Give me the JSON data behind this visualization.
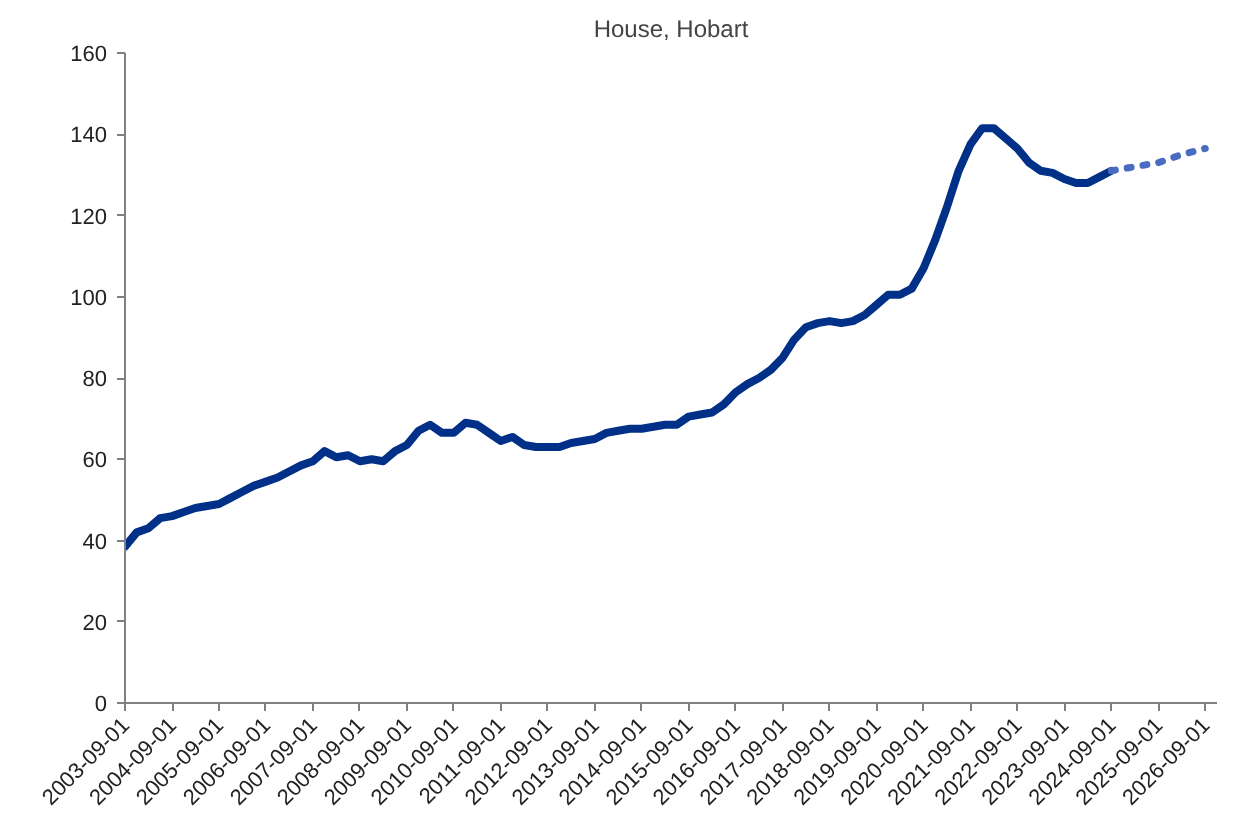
{
  "chart_data": {
    "type": "line",
    "title": "House, Hobart",
    "ylim": [
      0,
      160
    ],
    "yticks": [
      0,
      20,
      40,
      60,
      80,
      100,
      120,
      140,
      160
    ],
    "xlim": [
      "2003-09-01",
      "2026-12-01"
    ],
    "xticks": [
      "2003-09-01",
      "2004-09-01",
      "2005-09-01",
      "2006-09-01",
      "2007-09-01",
      "2008-09-01",
      "2009-09-01",
      "2010-09-01",
      "2011-09-01",
      "2012-09-01",
      "2013-09-01",
      "2014-09-01",
      "2015-09-01",
      "2016-09-01",
      "2017-09-01",
      "2018-09-01",
      "2019-09-01",
      "2020-09-01",
      "2021-09-01",
      "2022-09-01",
      "2023-09-01",
      "2024-09-01",
      "2025-09-01",
      "2026-09-01"
    ],
    "grid": false,
    "series": [
      {
        "color": "#003087",
        "line_style": "solid",
        "x": [
          "2003-09",
          "2003-12",
          "2004-03",
          "2004-06",
          "2004-09",
          "2004-12",
          "2005-03",
          "2005-06",
          "2005-09",
          "2005-12",
          "2006-03",
          "2006-06",
          "2006-09",
          "2006-12",
          "2007-03",
          "2007-06",
          "2007-09",
          "2007-12",
          "2008-03",
          "2008-06",
          "2008-09",
          "2008-12",
          "2009-03",
          "2009-06",
          "2009-09",
          "2009-12",
          "2010-03",
          "2010-06",
          "2010-09",
          "2010-12",
          "2011-03",
          "2011-06",
          "2011-09",
          "2011-12",
          "2012-03",
          "2012-06",
          "2012-09",
          "2012-12",
          "2013-03",
          "2013-06",
          "2013-09",
          "2013-12",
          "2014-03",
          "2014-06",
          "2014-09",
          "2014-12",
          "2015-03",
          "2015-06",
          "2015-09",
          "2015-12",
          "2016-03",
          "2016-06",
          "2016-09",
          "2016-12",
          "2017-03",
          "2017-06",
          "2017-09",
          "2017-12",
          "2018-03",
          "2018-06",
          "2018-09",
          "2018-12",
          "2019-03",
          "2019-06",
          "2019-09",
          "2019-12",
          "2020-03",
          "2020-06",
          "2020-09",
          "2020-12",
          "2021-03",
          "2021-06",
          "2021-09",
          "2021-12",
          "2022-03",
          "2022-06",
          "2022-09",
          "2022-12",
          "2023-03",
          "2023-06",
          "2023-09",
          "2023-12",
          "2024-03",
          "2024-06",
          "2024-09"
        ],
        "values": [
          38.5,
          42,
          43,
          45.5,
          46,
          47,
          48,
          48.5,
          49,
          50.5,
          52,
          53.5,
          54.5,
          55.5,
          57,
          58.5,
          59.5,
          62,
          60.5,
          61,
          59.5,
          60,
          59.5,
          62,
          63.5,
          67,
          68.5,
          66.5,
          66.5,
          69,
          68.5,
          66.5,
          64.5,
          65.5,
          63.5,
          63,
          63,
          63,
          64,
          64.5,
          65,
          66.5,
          67,
          67.5,
          67.5,
          68,
          68.5,
          68.5,
          70.5,
          71,
          71.5,
          73.5,
          76.5,
          78.5,
          80,
          82,
          85,
          89.5,
          92.5,
          93.5,
          94,
          93.5,
          94,
          95.5,
          98,
          100.5,
          100.5,
          102,
          107,
          114,
          122,
          131,
          137.5,
          141.5,
          141.5,
          139,
          136.5,
          133,
          131,
          130.5,
          129,
          128,
          128,
          129.5,
          131
        ]
      },
      {
        "color": "#4a6cc0",
        "line_style": "dotted",
        "x": [
          "2024-09",
          "2025-03",
          "2025-09",
          "2026-03",
          "2026-09"
        ],
        "values": [
          131,
          132,
          133,
          135,
          136.5
        ]
      }
    ]
  }
}
